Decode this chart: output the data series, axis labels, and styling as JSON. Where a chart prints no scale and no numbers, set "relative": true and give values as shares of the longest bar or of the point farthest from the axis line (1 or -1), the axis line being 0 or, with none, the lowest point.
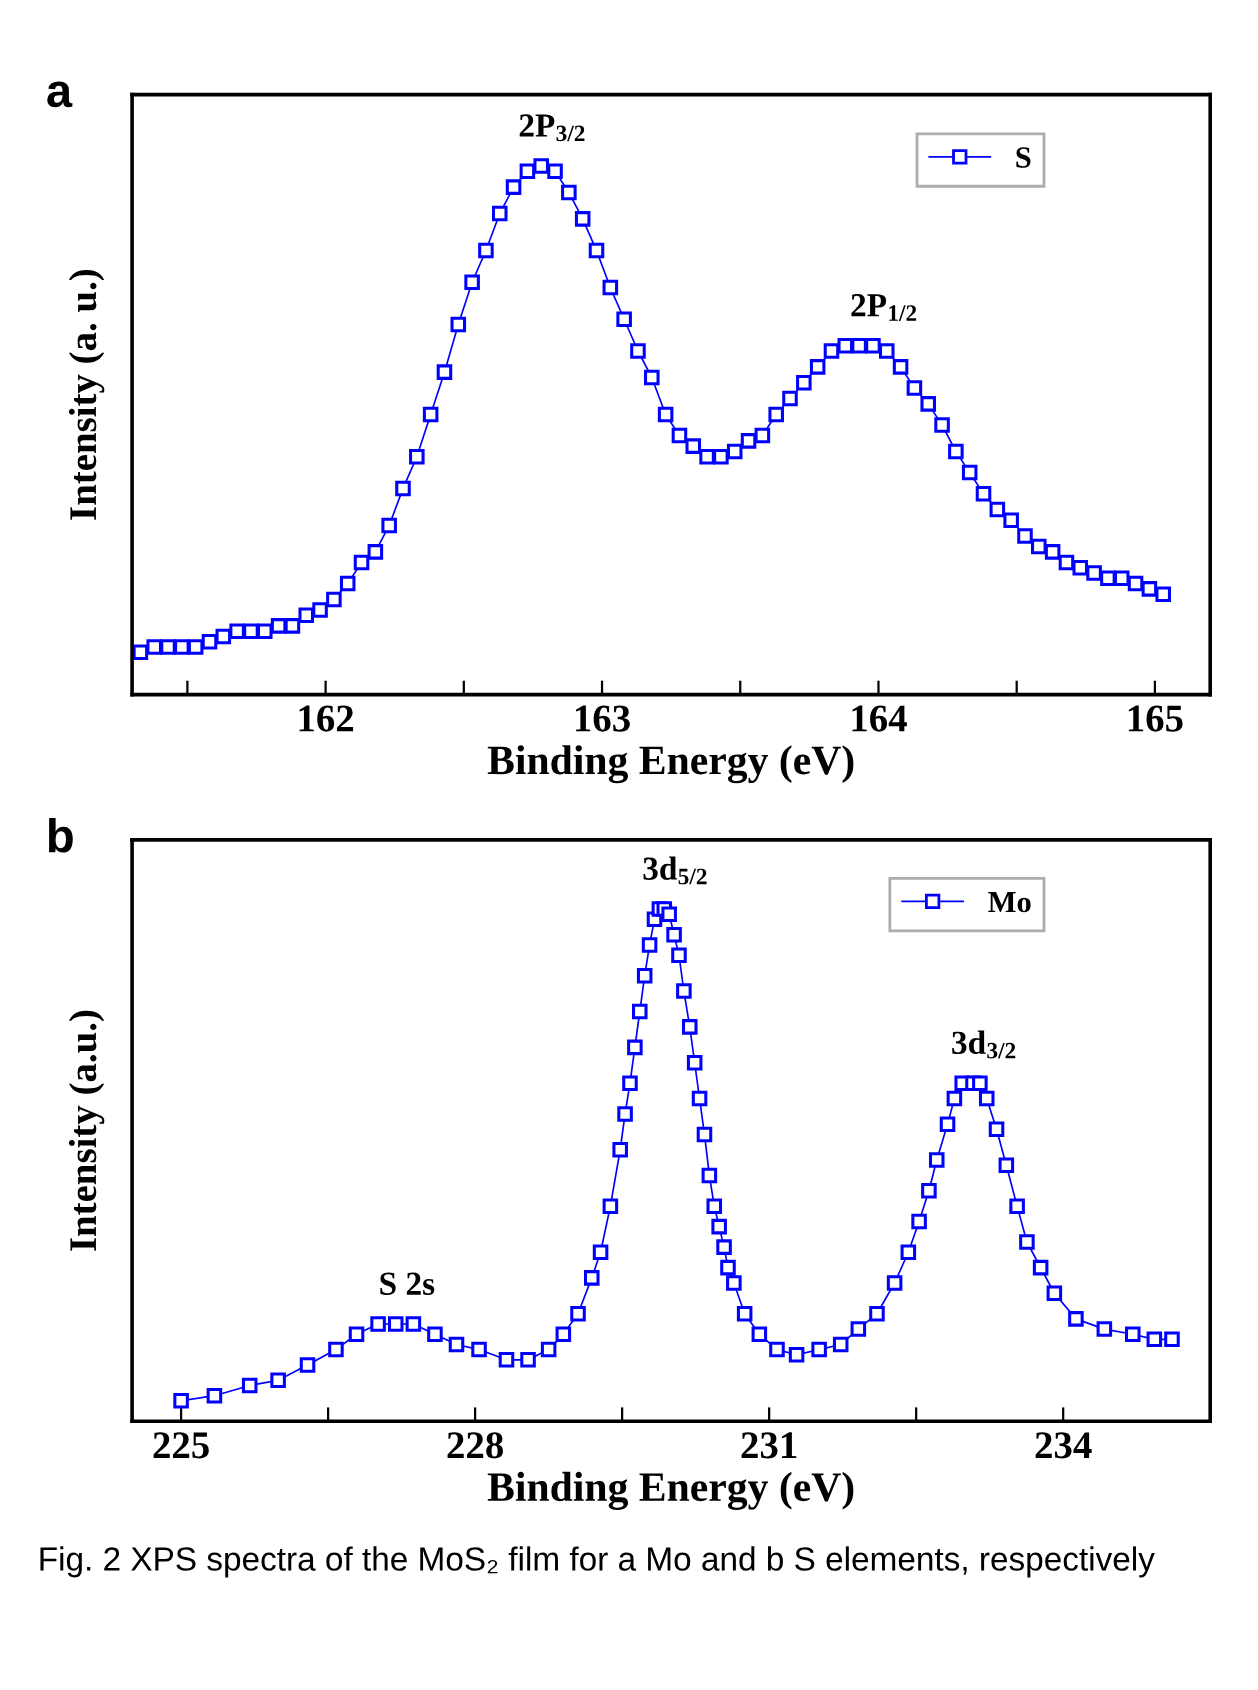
{
  "chart_data": [
    {
      "type": "line",
      "relative": true,
      "xlabel": "Binding Energy (eV)",
      "ylabel": "Intensity (a. u.)",
      "xlim": [
        161.3,
        165.2
      ],
      "xticks": [
        {
          "value": 161.5,
          "label": null
        },
        162,
        {
          "value": 162.5,
          "label": null
        },
        163,
        {
          "value": 163.5,
          "label": null
        },
        164,
        {
          "value": 164.5,
          "label": null
        },
        165
      ],
      "marker": "square",
      "line_style": "solid",
      "legend": "top right",
      "grid": false,
      "tick_labels": "x",
      "annotations": [
        "a",
        {
          "text": "2P$_{3/2}$",
          "x": 162.78,
          "y": 1.0
        },
        {
          "text": "2P$_{1/2}$",
          "x": 163.98,
          "y": 0.66
        }
      ],
      "series": [
        {
          "name": "S",
          "color": "#0000ff",
          "x": [
            161.33,
            161.38,
            161.43,
            161.48,
            161.53,
            161.58,
            161.63,
            161.68,
            161.73,
            161.78,
            161.83,
            161.88,
            161.93,
            161.98,
            162.03,
            162.08,
            162.13,
            162.18,
            162.23,
            162.28,
            162.33,
            162.38,
            162.43,
            162.48,
            162.53,
            162.58,
            162.63,
            162.68,
            162.73,
            162.78,
            162.83,
            162.88,
            162.93,
            162.98,
            163.03,
            163.08,
            163.13,
            163.18,
            163.23,
            163.28,
            163.33,
            163.38,
            163.43,
            163.48,
            163.53,
            163.58,
            163.63,
            163.68,
            163.73,
            163.78,
            163.83,
            163.88,
            163.93,
            163.98,
            164.03,
            164.08,
            164.13,
            164.18,
            164.23,
            164.28,
            164.33,
            164.38,
            164.43,
            164.48,
            164.53,
            164.58,
            164.63,
            164.68,
            164.73,
            164.78,
            164.83,
            164.88,
            164.93,
            164.98,
            165.03
          ],
          "values": [
            0.08,
            0.09,
            0.09,
            0.09,
            0.09,
            0.1,
            0.11,
            0.12,
            0.12,
            0.12,
            0.13,
            0.13,
            0.15,
            0.16,
            0.18,
            0.21,
            0.25,
            0.27,
            0.32,
            0.39,
            0.45,
            0.53,
            0.61,
            0.7,
            0.78,
            0.84,
            0.91,
            0.96,
            0.99,
            1.0,
            0.99,
            0.95,
            0.9,
            0.84,
            0.77,
            0.71,
            0.65,
            0.6,
            0.53,
            0.49,
            0.47,
            0.45,
            0.45,
            0.46,
            0.48,
            0.49,
            0.53,
            0.56,
            0.59,
            0.62,
            0.65,
            0.66,
            0.66,
            0.66,
            0.65,
            0.62,
            0.58,
            0.55,
            0.51,
            0.46,
            0.42,
            0.38,
            0.35,
            0.33,
            0.3,
            0.28,
            0.27,
            0.25,
            0.24,
            0.23,
            0.22,
            0.22,
            0.21,
            0.2,
            0.19
          ]
        }
      ]
    },
    {
      "type": "line",
      "relative": true,
      "xlabel": "Binding Energy (eV)",
      "ylabel": "Intensity (a.u.)",
      "xlim": [
        224.5,
        235.5
      ],
      "xticks": [
        225,
        {
          "value": 226.5,
          "label": null
        },
        228,
        {
          "value": 229.5,
          "label": null
        },
        231,
        {
          "value": 232.5,
          "label": null
        },
        234
      ],
      "marker": "square",
      "line_style": "solid",
      "legend": "top right",
      "grid": false,
      "tick_labels": "x",
      "annotations": [
        "b",
        {
          "text": "3d$_{5/2}$",
          "x": 229.93,
          "y": 1.0
        },
        {
          "text": "3d$_{3/2}$",
          "x": 233.08,
          "y": 0.66
        },
        {
          "text": "S 2s",
          "x": 227.19,
          "y": 0.19
        },
        "Fig. 2 XPS spectra of the MoS₂ film for a Mo and b S elements, respectively"
      ],
      "series": [
        {
          "name": "Mo",
          "color": "#0000ff",
          "x": [
            225.0,
            225.34,
            225.7,
            225.99,
            226.29,
            226.58,
            226.79,
            227.01,
            227.19,
            227.37,
            227.59,
            227.81,
            228.04,
            228.32,
            228.54,
            228.75,
            228.9,
            229.05,
            229.19,
            229.28,
            229.38,
            229.48,
            229.53,
            229.58,
            229.63,
            229.68,
            229.73,
            229.78,
            229.83,
            229.88,
            229.93,
            229.98,
            230.03,
            230.08,
            230.13,
            230.19,
            230.24,
            230.29,
            230.34,
            230.39,
            230.44,
            230.49,
            230.54,
            230.58,
            230.64,
            230.75,
            230.9,
            231.08,
            231.28,
            231.51,
            231.73,
            231.91,
            232.1,
            232.28,
            232.42,
            232.53,
            232.63,
            232.71,
            232.82,
            232.89,
            232.97,
            233.08,
            233.15,
            233.22,
            233.32,
            233.42,
            233.53,
            233.63,
            233.77,
            233.91,
            234.13,
            234.42,
            234.71,
            234.93,
            235.11
          ],
          "values": [
            0.04,
            0.05,
            0.07,
            0.08,
            0.11,
            0.14,
            0.17,
            0.19,
            0.19,
            0.19,
            0.17,
            0.15,
            0.14,
            0.12,
            0.12,
            0.14,
            0.17,
            0.21,
            0.28,
            0.33,
            0.42,
            0.53,
            0.6,
            0.66,
            0.73,
            0.8,
            0.87,
            0.93,
            0.98,
            1.0,
            1.0,
            0.99,
            0.95,
            0.91,
            0.84,
            0.77,
            0.7,
            0.63,
            0.56,
            0.48,
            0.42,
            0.38,
            0.34,
            0.3,
            0.27,
            0.21,
            0.17,
            0.14,
            0.13,
            0.14,
            0.15,
            0.18,
            0.21,
            0.27,
            0.33,
            0.39,
            0.45,
            0.51,
            0.58,
            0.63,
            0.66,
            0.66,
            0.66,
            0.63,
            0.57,
            0.5,
            0.42,
            0.35,
            0.3,
            0.25,
            0.2,
            0.18,
            0.17,
            0.16,
            0.16
          ]
        }
      ]
    }
  ]
}
